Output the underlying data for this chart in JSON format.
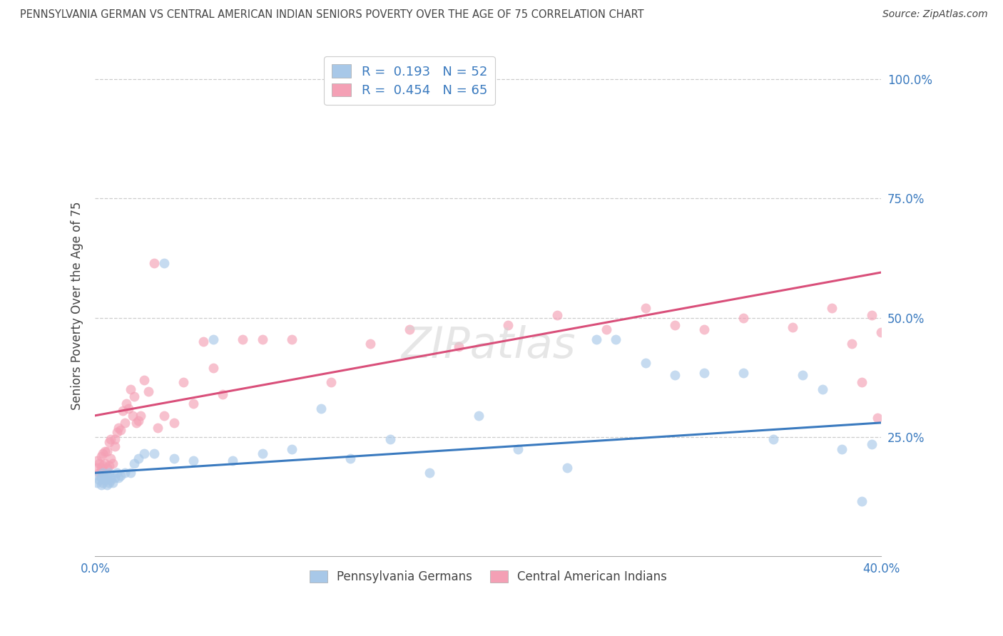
{
  "title": "PENNSYLVANIA GERMAN VS CENTRAL AMERICAN INDIAN SENIORS POVERTY OVER THE AGE OF 75 CORRELATION CHART",
  "source": "Source: ZipAtlas.com",
  "ylabel": "Seniors Poverty Over the Age of 75",
  "blue_R": 0.193,
  "blue_N": 52,
  "pink_R": 0.454,
  "pink_N": 65,
  "blue_color": "#a8c8e8",
  "pink_color": "#f4a0b5",
  "blue_line_color": "#3a7abf",
  "pink_line_color": "#d94f7a",
  "grid_color": "#cccccc",
  "title_color": "#444444",
  "axis_label_color": "#3a7abf",
  "legend_text_color": "#3a7abf",
  "xlim": [
    0.0,
    0.4
  ],
  "ylim": [
    0.0,
    1.05
  ],
  "blue_trend_x": [
    0.0,
    0.4
  ],
  "blue_trend_y": [
    0.175,
    0.28
  ],
  "pink_trend_x": [
    0.0,
    0.4
  ],
  "pink_trend_y": [
    0.295,
    0.595
  ],
  "blue_x": [
    0.001,
    0.002,
    0.002,
    0.003,
    0.003,
    0.004,
    0.004,
    0.005,
    0.005,
    0.006,
    0.006,
    0.007,
    0.007,
    0.008,
    0.008,
    0.009,
    0.01,
    0.011,
    0.012,
    0.013,
    0.015,
    0.018,
    0.02,
    0.022,
    0.025,
    0.03,
    0.035,
    0.04,
    0.05,
    0.06,
    0.07,
    0.085,
    0.1,
    0.115,
    0.13,
    0.15,
    0.17,
    0.195,
    0.215,
    0.24,
    0.255,
    0.265,
    0.28,
    0.295,
    0.31,
    0.33,
    0.345,
    0.36,
    0.37,
    0.38,
    0.39,
    0.395
  ],
  "blue_y": [
    0.155,
    0.16,
    0.17,
    0.15,
    0.165,
    0.155,
    0.175,
    0.16,
    0.165,
    0.15,
    0.17,
    0.155,
    0.175,
    0.16,
    0.165,
    0.155,
    0.165,
    0.175,
    0.165,
    0.17,
    0.175,
    0.175,
    0.195,
    0.205,
    0.215,
    0.215,
    0.615,
    0.205,
    0.2,
    0.455,
    0.2,
    0.215,
    0.225,
    0.31,
    0.205,
    0.245,
    0.175,
    0.295,
    0.225,
    0.185,
    0.455,
    0.455,
    0.405,
    0.38,
    0.385,
    0.385,
    0.245,
    0.38,
    0.35,
    0.225,
    0.115,
    0.235
  ],
  "pink_x": [
    0.001,
    0.001,
    0.002,
    0.002,
    0.003,
    0.003,
    0.004,
    0.004,
    0.005,
    0.005,
    0.006,
    0.006,
    0.007,
    0.007,
    0.008,
    0.008,
    0.009,
    0.01,
    0.01,
    0.011,
    0.012,
    0.013,
    0.014,
    0.015,
    0.016,
    0.017,
    0.018,
    0.019,
    0.02,
    0.021,
    0.022,
    0.023,
    0.025,
    0.027,
    0.03,
    0.032,
    0.035,
    0.04,
    0.045,
    0.05,
    0.055,
    0.06,
    0.065,
    0.075,
    0.085,
    0.1,
    0.12,
    0.14,
    0.16,
    0.185,
    0.21,
    0.235,
    0.26,
    0.28,
    0.295,
    0.31,
    0.33,
    0.355,
    0.375,
    0.385,
    0.39,
    0.395,
    0.398,
    0.4,
    0.405
  ],
  "pink_y": [
    0.185,
    0.2,
    0.175,
    0.195,
    0.185,
    0.21,
    0.19,
    0.215,
    0.195,
    0.22,
    0.185,
    0.22,
    0.19,
    0.24,
    0.205,
    0.245,
    0.195,
    0.245,
    0.23,
    0.26,
    0.27,
    0.265,
    0.305,
    0.28,
    0.32,
    0.31,
    0.35,
    0.295,
    0.335,
    0.28,
    0.285,
    0.295,
    0.37,
    0.345,
    0.615,
    0.27,
    0.295,
    0.28,
    0.365,
    0.32,
    0.45,
    0.395,
    0.34,
    0.455,
    0.455,
    0.455,
    0.365,
    0.445,
    0.475,
    0.44,
    0.485,
    0.505,
    0.475,
    0.52,
    0.485,
    0.475,
    0.5,
    0.48,
    0.52,
    0.445,
    0.365,
    0.505,
    0.29,
    0.47,
    0.455
  ]
}
